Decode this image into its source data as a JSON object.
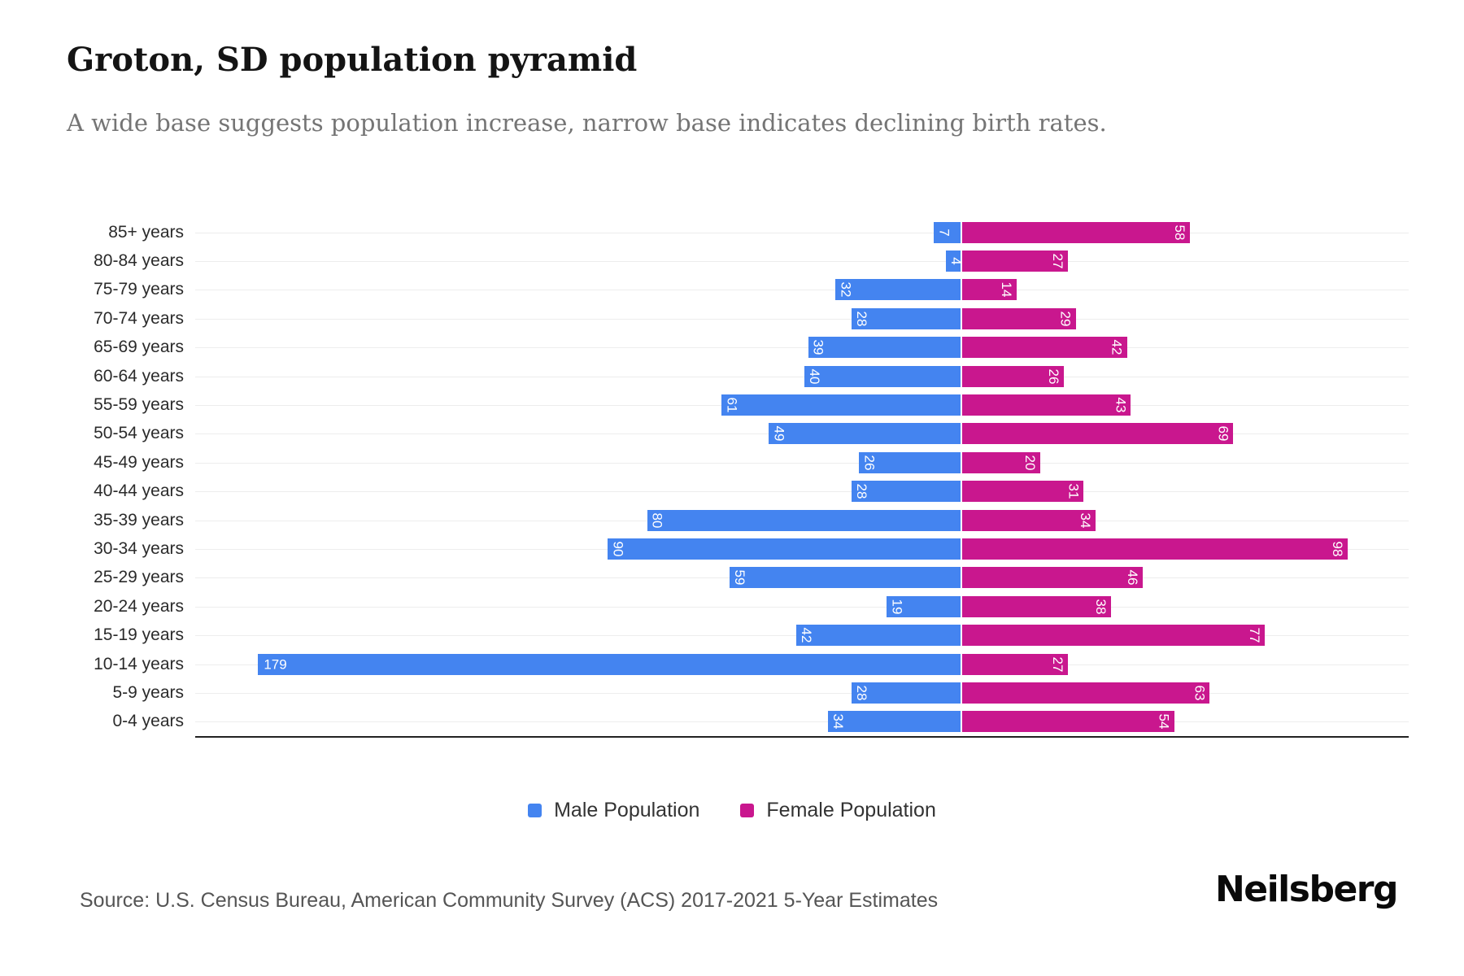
{
  "chart_data": {
    "type": "bar",
    "variant": "population-pyramid",
    "title": "Groton, SD population pyramid",
    "subtitle": "A wide base suggests population increase, narrow base indicates declining birth rates.",
    "source": "Source: U.S. Census Bureau, American Community Survey (ACS) 2017-2021 5-Year Estimates",
    "categories": [
      "85+ years",
      "80-84 years",
      "75-79 years",
      "70-74 years",
      "65-69 years",
      "60-64 years",
      "55-59 years",
      "50-54 years",
      "45-49 years",
      "40-44 years",
      "35-39 years",
      "30-34 years",
      "25-29 years",
      "20-24 years",
      "15-19 years",
      "10-14 years",
      "5-9 years",
      "0-4 years"
    ],
    "series": [
      {
        "name": "Male Population",
        "color": "#4484F0",
        "direction": "left",
        "values": [
          7,
          4,
          32,
          28,
          39,
          40,
          61,
          49,
          26,
          28,
          80,
          90,
          59,
          19,
          42,
          179,
          28,
          34
        ]
      },
      {
        "name": "Female Population",
        "color": "#C9178E",
        "direction": "right",
        "values": [
          58,
          27,
          14,
          29,
          42,
          26,
          43,
          69,
          20,
          31,
          34,
          98,
          46,
          38,
          77,
          27,
          63,
          54
        ]
      }
    ],
    "bar_value_labels": {
      "color": "#ffffff",
      "rotated": true,
      "horizontal_exceptions": [
        "179"
      ]
    },
    "layout": {
      "male_axis_max": 195,
      "female_axis_max": 113.5,
      "center_fraction": 0.6314,
      "grid": true,
      "gridline_color": "#ededed",
      "axis_line_color": "#222222",
      "legend_position": "bottom",
      "x_tick_labels": false
    }
  },
  "footer": {
    "brand": "Neilsberg"
  }
}
